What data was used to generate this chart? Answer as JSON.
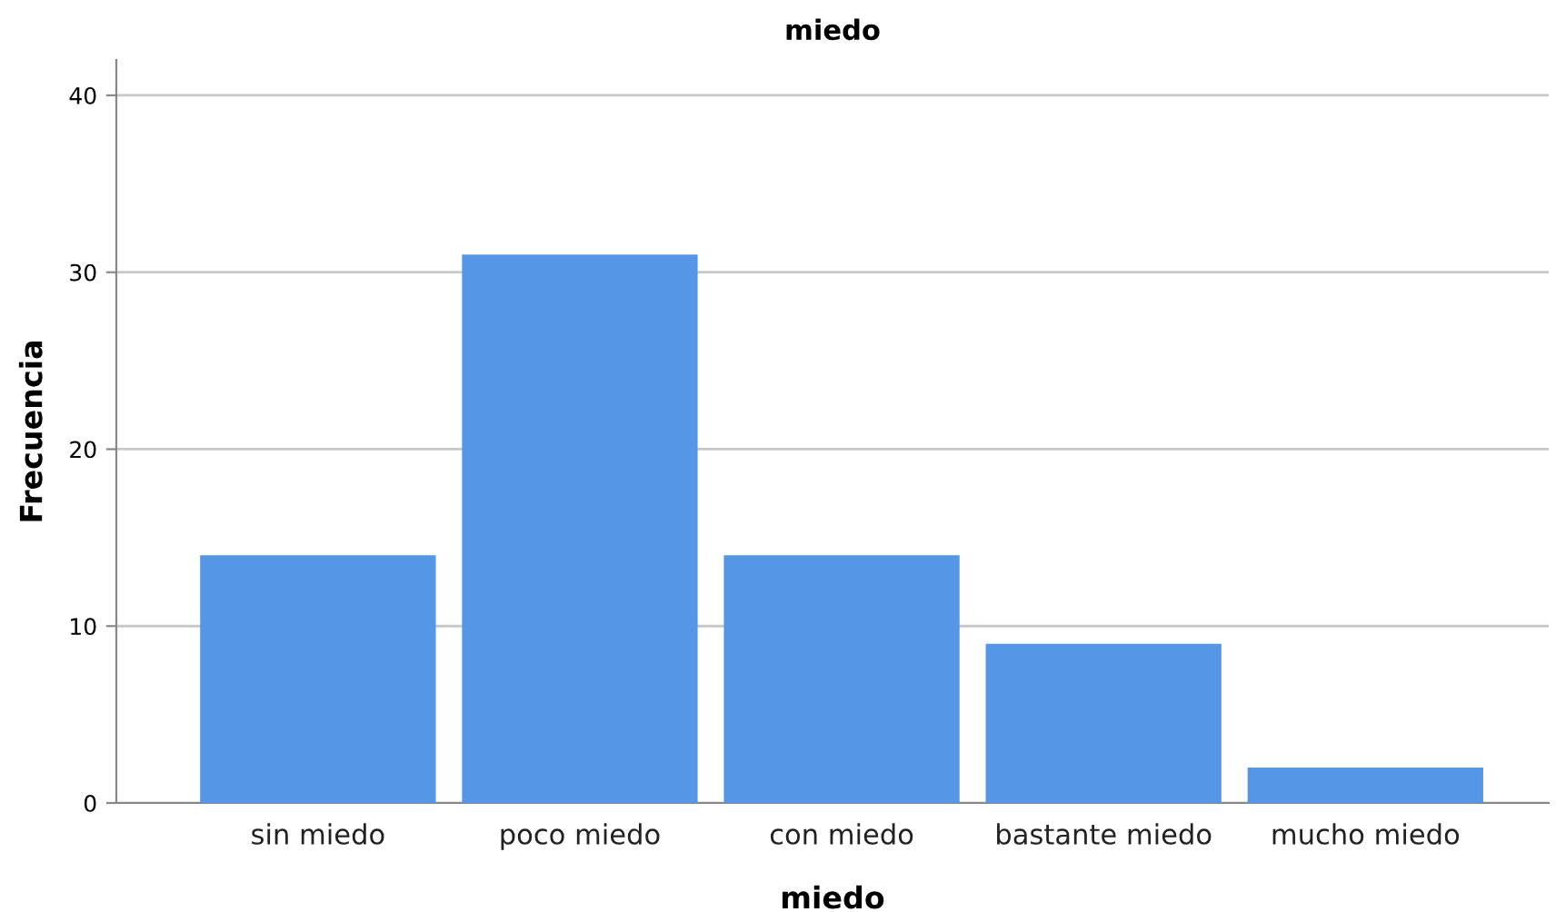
{
  "chart_data": {
    "type": "bar",
    "title": "miedo",
    "xlabel": "miedo",
    "ylabel": "Frecuencia",
    "categories": [
      "sin miedo",
      "poco miedo",
      "con miedo",
      "bastante miedo",
      "mucho miedo"
    ],
    "values": [
      14,
      31,
      14,
      9,
      2
    ],
    "color": "#5597e6",
    "ylim": [
      0,
      42
    ],
    "yticks": [
      0,
      10,
      20,
      30,
      40
    ],
    "grid": "y"
  }
}
